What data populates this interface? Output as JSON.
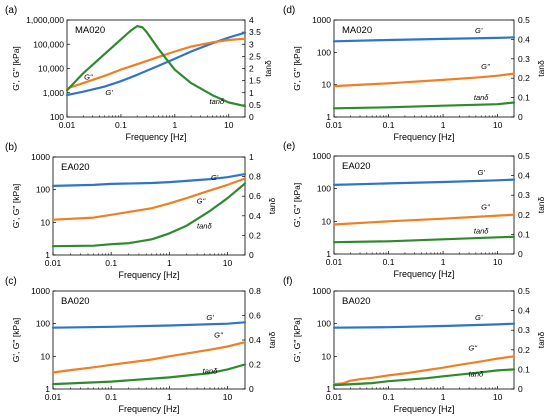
{
  "colors": {
    "G_prime": "#2f75c6",
    "G_double_prime": "#f07f24",
    "tan_delta": "#2f8a2f"
  },
  "tick_labels": {
    "x": [
      "0.01",
      "0.1",
      "1",
      "10"
    ],
    "y_left_a": [
      "100",
      "1,000",
      "10,000",
      "100,000",
      "1,000,000"
    ],
    "y_left_small": [
      "1",
      "10",
      "100",
      "1000"
    ],
    "y_right_a": [
      "0",
      "0.5",
      "1",
      "1.5",
      "2",
      "2.5",
      "3",
      "3.5",
      "4"
    ],
    "y_right_1": [
      "0",
      "0.2",
      "0.4",
      "0.6",
      "0.8",
      "1"
    ],
    "y_right_08": [
      "0",
      "0.2",
      "0.4",
      "0.6",
      "0.8"
    ],
    "y_right_05": [
      "0",
      "0.1",
      "0.2",
      "0.3",
      "0.4",
      "0.5"
    ]
  },
  "chart_data": [
    {
      "panel": "(a)",
      "sample": "MA020",
      "type": "line",
      "xlabel": "Frequency [Hz]",
      "ylabel_left": "G', G'' [kPa]",
      "ylabel_right": "tanδ",
      "xlim": [
        0.01,
        20
      ],
      "x_scale": "log",
      "ylim_left": [
        100,
        1000000
      ],
      "y_left_scale": "log",
      "ylim_right": [
        0,
        4
      ],
      "y_right_ticks": [
        0,
        0.5,
        1,
        1.5,
        2,
        2.5,
        3,
        3.5,
        4
      ],
      "y_right_ticklabels": "y_right_a",
      "series": [
        {
          "name": "G'",
          "axis": "left",
          "color_key": "G_prime",
          "x": [
            0.01,
            0.02,
            0.05,
            0.1,
            0.2,
            0.5,
            1,
            2,
            5,
            10,
            20
          ],
          "y": [
            800,
            1100,
            1800,
            3000,
            5500,
            13000,
            25000,
            50000,
            110000,
            190000,
            300000
          ]
        },
        {
          "name": "G''",
          "axis": "left",
          "color_key": "G_double_prime",
          "x": [
            0.01,
            0.02,
            0.05,
            0.1,
            0.2,
            0.5,
            1,
            2,
            5,
            10,
            20
          ],
          "y": [
            1500,
            2500,
            5000,
            9000,
            15000,
            30000,
            50000,
            80000,
            120000,
            150000,
            170000
          ]
        },
        {
          "name": "tanδ",
          "axis": "right",
          "color_key": "tan_delta",
          "x": [
            0.01,
            0.02,
            0.05,
            0.1,
            0.15,
            0.2,
            0.25,
            0.3,
            0.5,
            1,
            2,
            5,
            10,
            20
          ],
          "y": [
            1.1,
            1.8,
            2.6,
            3.2,
            3.55,
            3.75,
            3.7,
            3.5,
            2.8,
            1.95,
            1.4,
            0.9,
            0.6,
            0.45
          ]
        }
      ],
      "labels": [
        {
          "text": "G''",
          "series": 1,
          "x": 0.025,
          "y": 3500
        },
        {
          "text": "G'",
          "series": 0,
          "x": 0.06,
          "y": 800
        },
        {
          "text": "tanδ",
          "series": 2,
          "x": 6,
          "y": 350
        }
      ]
    },
    {
      "panel": "(b)",
      "sample": "EA020",
      "type": "line",
      "xlabel": "Frequency [Hz]",
      "ylabel_left": "G', G'' [kPa]",
      "ylabel_right": "tanδ",
      "xlim": [
        0.01,
        20
      ],
      "x_scale": "log",
      "ylim_left": [
        1,
        1000
      ],
      "y_left_scale": "log",
      "ylim_right": [
        0,
        1
      ],
      "y_right_ticks": [
        0,
        0.2,
        0.4,
        0.6,
        0.8,
        1
      ],
      "y_right_ticklabels": "y_right_1",
      "series": [
        {
          "name": "G'",
          "axis": "left",
          "color_key": "G_prime",
          "x": [
            0.01,
            0.05,
            0.1,
            0.5,
            1,
            2,
            5,
            10,
            20
          ],
          "y": [
            130,
            140,
            150,
            160,
            170,
            185,
            210,
            240,
            300
          ]
        },
        {
          "name": "G''",
          "axis": "left",
          "color_key": "G_double_prime",
          "x": [
            0.01,
            0.05,
            0.1,
            0.5,
            1,
            2,
            5,
            10,
            20
          ],
          "y": [
            12,
            14,
            17,
            27,
            38,
            55,
            95,
            140,
            220
          ]
        },
        {
          "name": "tanδ",
          "axis": "right",
          "color_key": "tan_delta",
          "x": [
            0.01,
            0.05,
            0.1,
            0.2,
            0.5,
            1,
            2,
            5,
            10,
            20
          ],
          "y": [
            0.09,
            0.095,
            0.11,
            0.12,
            0.16,
            0.22,
            0.3,
            0.45,
            0.58,
            0.73
          ]
        }
      ],
      "labels": [
        {
          "text": "G'",
          "series": 0,
          "x": 6,
          "y": 200
        },
        {
          "text": "G''",
          "series": 1,
          "x": 3.5,
          "y": 38
        },
        {
          "text": "tanδ",
          "series": 2,
          "x": 4,
          "y": 6.5
        }
      ]
    },
    {
      "panel": "(c)",
      "sample": "BA020",
      "type": "line",
      "xlabel": "Frequency [Hz]",
      "ylabel_left": "G', G'' [kPa]",
      "ylabel_right": "tanδ",
      "xlim": [
        0.01,
        20
      ],
      "x_scale": "log",
      "ylim_left": [
        1,
        1000
      ],
      "y_left_scale": "log",
      "ylim_right": [
        0,
        0.8
      ],
      "y_right_ticks": [
        0,
        0.2,
        0.4,
        0.6,
        0.8
      ],
      "y_right_ticklabels": "y_right_08",
      "series": [
        {
          "name": "G'",
          "axis": "left",
          "color_key": "G_prime",
          "x": [
            0.01,
            0.1,
            1,
            10,
            20
          ],
          "y": [
            75,
            80,
            88,
            100,
            110
          ]
        },
        {
          "name": "G''",
          "axis": "left",
          "color_key": "G_double_prime",
          "x": [
            0.01,
            0.02,
            0.05,
            0.1,
            0.5,
            1,
            5,
            10,
            20
          ],
          "y": [
            3.2,
            3.8,
            4.6,
            5.5,
            8,
            10,
            16,
            20,
            27
          ]
        },
        {
          "name": "tanδ",
          "axis": "right",
          "color_key": "tan_delta",
          "x": [
            0.01,
            0.1,
            1,
            5,
            10,
            20
          ],
          "y": [
            0.04,
            0.06,
            0.095,
            0.13,
            0.16,
            0.2
          ]
        }
      ],
      "labels": [
        {
          "text": "G'",
          "series": 0,
          "x": 5,
          "y": 130
        },
        {
          "text": "G''",
          "series": 1,
          "x": 7,
          "y": 38
        },
        {
          "text": "tanδ",
          "series": 2,
          "x": 5,
          "y": 3
        }
      ]
    },
    {
      "panel": "(d)",
      "sample": "MA020",
      "type": "line",
      "xlabel": "Frequency [Hz]",
      "ylabel_left": "G', G'' [kPa]",
      "ylabel_right": "tanδ",
      "xlim": [
        0.01,
        20
      ],
      "x_scale": "log",
      "ylim_left": [
        1,
        1000
      ],
      "y_left_scale": "log",
      "ylim_right": [
        0,
        0.5
      ],
      "y_right_ticks": [
        0,
        0.1,
        0.2,
        0.3,
        0.4,
        0.5
      ],
      "y_right_ticklabels": "y_right_05",
      "series": [
        {
          "name": "G'",
          "axis": "left",
          "color_key": "G_prime",
          "x": [
            0.01,
            0.1,
            1,
            10,
            20
          ],
          "y": [
            220,
            240,
            260,
            280,
            290
          ]
        },
        {
          "name": "G''",
          "axis": "left",
          "color_key": "G_double_prime",
          "x": [
            0.01,
            0.1,
            1,
            5,
            10,
            20
          ],
          "y": [
            9,
            11,
            14,
            17,
            19,
            22
          ]
        },
        {
          "name": "tanδ",
          "axis": "right",
          "color_key": "tan_delta",
          "x": [
            0.01,
            0.1,
            1,
            10,
            20
          ],
          "y": [
            0.045,
            0.05,
            0.058,
            0.066,
            0.075
          ]
        }
      ],
      "labels": [
        {
          "text": "G'",
          "series": 0,
          "x": 4.5,
          "y": 390
        },
        {
          "text": "G''",
          "series": 1,
          "x": 6,
          "y": 30
        },
        {
          "text": "tanδ",
          "series": 2,
          "x": 5,
          "y": 3.4
        }
      ]
    },
    {
      "panel": "(e)",
      "sample": "EA020",
      "type": "line",
      "xlabel": "Frequency [Hz]",
      "ylabel_left": "G', G'' [kPa]",
      "ylabel_right": "tanδ",
      "xlim": [
        0.01,
        20
      ],
      "x_scale": "log",
      "ylim_left": [
        1,
        1000
      ],
      "y_left_scale": "log",
      "ylim_right": [
        0,
        0.5
      ],
      "y_right_ticks": [
        0,
        0.1,
        0.2,
        0.3,
        0.4,
        0.5
      ],
      "y_right_ticklabels": "y_right_05",
      "series": [
        {
          "name": "G'",
          "axis": "left",
          "color_key": "G_prime",
          "x": [
            0.01,
            0.1,
            1,
            10,
            20
          ],
          "y": [
            130,
            145,
            160,
            180,
            190
          ]
        },
        {
          "name": "G''",
          "axis": "left",
          "color_key": "G_double_prime",
          "x": [
            0.01,
            0.1,
            1,
            10,
            20
          ],
          "y": [
            8,
            10,
            12,
            15,
            16
          ]
        },
        {
          "name": "tanδ",
          "axis": "right",
          "color_key": "tan_delta",
          "x": [
            0.01,
            0.1,
            1,
            10,
            20
          ],
          "y": [
            0.06,
            0.065,
            0.075,
            0.085,
            0.088
          ]
        }
      ],
      "labels": [
        {
          "text": "G'",
          "series": 0,
          "x": 5,
          "y": 260
        },
        {
          "text": "G''",
          "series": 1,
          "x": 6,
          "y": 23
        },
        {
          "text": "tanδ",
          "series": 2,
          "x": 5,
          "y": 4.3
        }
      ]
    },
    {
      "panel": "(f)",
      "sample": "BA020",
      "type": "line",
      "xlabel": "Frequency [Hz]",
      "ylabel_left": "G', G'' [kPa]",
      "ylabel_right": "tanδ",
      "xlim": [
        0.01,
        20
      ],
      "x_scale": "log",
      "ylim_left": [
        1,
        1000
      ],
      "y_left_scale": "log",
      "ylim_right": [
        0,
        0.5
      ],
      "y_right_ticks": [
        0,
        0.1,
        0.2,
        0.3,
        0.4,
        0.5
      ],
      "y_right_ticklabels": "y_right_05",
      "series": [
        {
          "name": "G'",
          "axis": "left",
          "color_key": "G_prime",
          "x": [
            0.01,
            0.1,
            1,
            10,
            20
          ],
          "y": [
            75,
            78,
            85,
            95,
            100
          ]
        },
        {
          "name": "G''",
          "axis": "left",
          "color_key": "G_double_prime",
          "x": [
            0.01,
            0.015,
            0.02,
            0.03,
            0.05,
            0.1,
            0.2,
            0.5,
            1,
            2,
            5,
            10,
            20
          ],
          "y": [
            1.4,
            1.5,
            1.8,
            2.0,
            2.2,
            2.6,
            3.0,
            3.8,
            4.5,
            5.5,
            7,
            8.5,
            10
          ]
        },
        {
          "name": "tanδ",
          "axis": "right",
          "color_key": "tan_delta",
          "x": [
            0.01,
            0.05,
            0.1,
            0.5,
            1,
            5,
            10,
            20
          ],
          "y": [
            0.02,
            0.03,
            0.04,
            0.055,
            0.065,
            0.085,
            0.095,
            0.1
          ]
        }
      ],
      "labels": [
        {
          "text": "G'",
          "series": 0,
          "x": 4.5,
          "y": 130
        },
        {
          "text": "G''",
          "series": 1,
          "x": 3.5,
          "y": 15
        },
        {
          "text": "tanδ",
          "series": 2,
          "x": 4,
          "y": 2.4
        }
      ]
    }
  ]
}
